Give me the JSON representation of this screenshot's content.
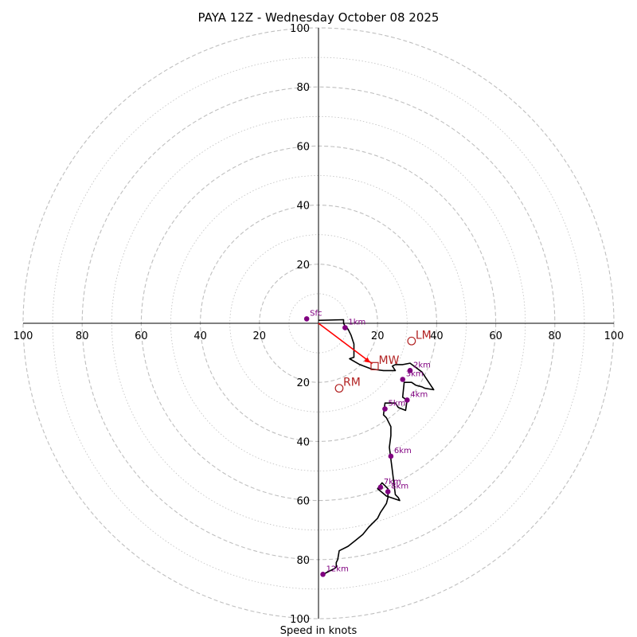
{
  "chart_data": {
    "type": "hodograph",
    "title": "PAYA 12Z - Wednesday October 08 2025",
    "xlabel": "Speed in knots",
    "range": [
      -100,
      100
    ],
    "ring_major": [
      20,
      40,
      60,
      80,
      100
    ],
    "ring_minor": [
      10,
      30,
      50,
      70,
      90
    ],
    "ticks": {
      "x_left": [
        "100",
        "80",
        "60",
        "40",
        "20"
      ],
      "x_right": [
        "20",
        "40",
        "60",
        "80",
        "100"
      ],
      "y_top": [
        "100",
        "80",
        "60",
        "40",
        "20"
      ],
      "y_bottom": [
        "20",
        "40",
        "60",
        "80",
        "100"
      ]
    },
    "tick_values": {
      "x_left": [
        -100,
        -80,
        -60,
        -40,
        -20
      ],
      "x_right": [
        20,
        40,
        60,
        80,
        100
      ],
      "y_top": [
        100,
        80,
        60,
        40,
        20
      ],
      "y_bottom": [
        -20,
        -40,
        -60,
        -80,
        -100
      ]
    },
    "trace": {
      "color": "#000000",
      "u": [
        0,
        8.5,
        8.5,
        9,
        10,
        11,
        12,
        12,
        10.5,
        14,
        18,
        22,
        26,
        25,
        26,
        28.5,
        31,
        35,
        38,
        39,
        36,
        35,
        33,
        31.5,
        29,
        28.5,
        30,
        29.5,
        27,
        26,
        24,
        22.5,
        22,
        23,
        24.5,
        24.5,
        24,
        24.5,
        25,
        25.5,
        26,
        27,
        27.5,
        24.5,
        23,
        20,
        21.5,
        22.5,
        23.5,
        23.5,
        23,
        22,
        21,
        20,
        19,
        17,
        15,
        12.5,
        10,
        7,
        6.5,
        6,
        6,
        6,
        5.5,
        1.5
      ],
      "v": [
        1,
        1.2,
        0,
        -1,
        -2,
        -4,
        -7,
        -11.5,
        -12,
        -14,
        -15.5,
        -16,
        -16,
        -14.5,
        -14,
        -14,
        -13.5,
        -16.5,
        -21,
        -22.5,
        -22,
        -21.5,
        -21,
        -20,
        -20,
        -25,
        -26,
        -29.5,
        -28.5,
        -27,
        -27,
        -27,
        -31,
        -32,
        -35,
        -38,
        -42,
        -46,
        -50,
        -54,
        -58,
        -59,
        -60,
        -59,
        -58.5,
        -56,
        -54,
        -55,
        -56,
        -59,
        -61,
        -62.5,
        -64,
        -66,
        -67,
        -69,
        -71.5,
        -73.5,
        -75.5,
        -77,
        -80,
        -81,
        -82,
        -82.5,
        -83,
        -85
      ]
    },
    "height_markers": [
      {
        "label": "Sfc",
        "u": -4,
        "v": 1.5
      },
      {
        "label": "1km",
        "u": 9,
        "v": -1.5
      },
      {
        "label": "2km",
        "u": 31,
        "v": -16
      },
      {
        "label": "3km",
        "u": 28.5,
        "v": -19
      },
      {
        "label": "4km",
        "u": 30,
        "v": -26
      },
      {
        "label": "5km",
        "u": 22.5,
        "v": -29
      },
      {
        "label": "6km",
        "u": 24.5,
        "v": -45
      },
      {
        "label": "7km",
        "u": 21,
        "v": -55.5
      },
      {
        "label": "8km",
        "u": 23.5,
        "v": -57
      },
      {
        "label": "12km",
        "u": 1.5,
        "v": -85
      }
    ],
    "storm_motion": {
      "color": "#B22222",
      "arrow_color": "#FF0000",
      "points": [
        {
          "label": "LM",
          "u": 31.5,
          "v": -6
        },
        {
          "label": "RM",
          "u": 7,
          "v": -22
        },
        {
          "label": "MW",
          "u": 19,
          "v": -14.5
        }
      ]
    },
    "colors": {
      "marker": "#800080",
      "grid": "#bfbfbf",
      "axis": "#000000"
    }
  }
}
